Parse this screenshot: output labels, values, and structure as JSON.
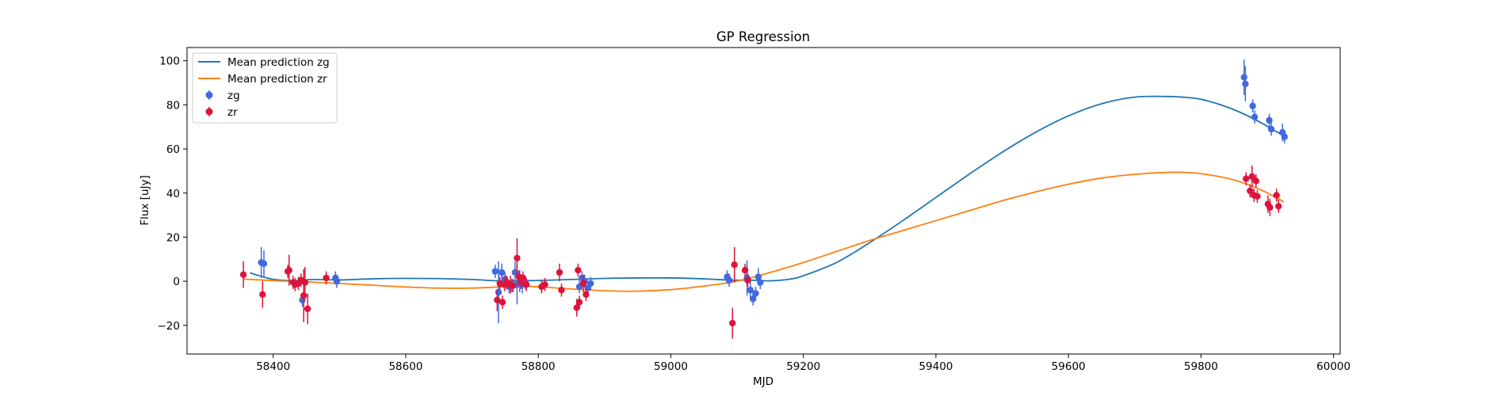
{
  "chart_data": {
    "type": "scatter",
    "title": "GP Regression",
    "xlabel": "MJD",
    "ylabel": "Flux [uJy]",
    "xlim": [
      58270,
      60010
    ],
    "ylim": [
      -33,
      106
    ],
    "xticks": [
      58400,
      58600,
      58800,
      59000,
      59200,
      59400,
      59600,
      59800,
      60000
    ],
    "yticks": [
      -20,
      0,
      20,
      40,
      60,
      80,
      100
    ],
    "grid": false,
    "legend_position": "top-left",
    "colors": {
      "mean_zg": "#1f77b4",
      "mean_zr": "#ff7f0e",
      "zg": "#4169e1",
      "zr": "#dc143c"
    },
    "lines": [
      {
        "name": "Mean prediction zg",
        "x": [
          58365,
          58380,
          58400,
          58430,
          58460,
          58500,
          58550,
          58600,
          58650,
          58700,
          58740,
          58780,
          58850,
          58900,
          58950,
          59000,
          59050,
          59090,
          59120,
          59150,
          59180,
          59200,
          59250,
          59300,
          59350,
          59400,
          59450,
          59500,
          59550,
          59600,
          59650,
          59700,
          59750,
          59780,
          59800,
          59830,
          59860,
          59890,
          59910,
          59925
        ],
        "y": [
          3.8,
          2.4,
          0.9,
          0.3,
          0.8,
          0.6,
          1.1,
          1.3,
          1.2,
          0.8,
          0.2,
          0.2,
          0.8,
          1.3,
          1.5,
          1.5,
          1.1,
          0.5,
          0.5,
          0.2,
          1.0,
          2.5,
          8.5,
          17.5,
          27.5,
          38.0,
          48.5,
          58.5,
          67.5,
          75.0,
          80.5,
          83.5,
          83.8,
          83.3,
          82.5,
          80.0,
          76.5,
          72.0,
          68.5,
          66.0
        ]
      },
      {
        "name": "Mean prediction zr",
        "x": [
          58355,
          58400,
          58450,
          58500,
          58550,
          58600,
          58650,
          58700,
          58740,
          58780,
          58850,
          58900,
          58950,
          59000,
          59050,
          59090,
          59120,
          59150,
          59200,
          59250,
          59300,
          59350,
          59400,
          59450,
          59500,
          59550,
          59600,
          59650,
          59700,
          59750,
          59780,
          59800,
          59830,
          59860,
          59890,
          59910,
          59925
        ],
        "y": [
          1.0,
          0.3,
          -0.3,
          -1.0,
          -1.8,
          -2.6,
          -3.1,
          -3.1,
          -2.6,
          -2.2,
          -3.5,
          -4.3,
          -4.5,
          -3.8,
          -2.2,
          -0.5,
          1.5,
          4.0,
          8.5,
          13.5,
          18.5,
          23.0,
          27.5,
          32.0,
          36.5,
          40.5,
          44.0,
          46.8,
          48.5,
          49.4,
          49.3,
          48.8,
          47.3,
          45.0,
          41.5,
          38.5,
          36.0
        ]
      }
    ],
    "series": [
      {
        "name": "zg",
        "x": [
          58382,
          58386,
          58444,
          58494,
          58496,
          58735,
          58740,
          58745,
          58750,
          58756,
          58760,
          58765,
          58768,
          58772,
          58776,
          58780,
          58862,
          58866,
          58870,
          58875,
          58879,
          59085,
          59088,
          59115,
          59120,
          59124,
          59128,
          59132,
          59135,
          59865,
          59867,
          59878,
          59881,
          59903,
          59906,
          59923,
          59926
        ],
        "y": [
          8.5,
          8.0,
          -8.5,
          1.5,
          0.0,
          4.5,
          -5.0,
          4.0,
          1.0,
          -2.5,
          -2.0,
          4.0,
          -1.5,
          0.0,
          -1.5,
          -0.5,
          -2.5,
          1.5,
          0.0,
          -3.0,
          -1.0,
          2.0,
          0.5,
          1.5,
          -4.0,
          -8.0,
          -5.5,
          2.0,
          -0.5,
          92.5,
          89.5,
          79.5,
          74.5,
          73.0,
          69.0,
          67.5,
          65.5
        ],
        "yerr": [
          7,
          6,
          3,
          3,
          3,
          3,
          14,
          4,
          3,
          3,
          3,
          5,
          9,
          5,
          4,
          3,
          3,
          3,
          3,
          3,
          3,
          3,
          3,
          8,
          4,
          3,
          3,
          4,
          3,
          8,
          8,
          3,
          3,
          3,
          3,
          4,
          3
        ]
      },
      {
        "name": "zr",
        "x": [
          58355,
          58384,
          58422,
          58424,
          58430,
          58433,
          58438,
          58442,
          58446,
          58448,
          58452,
          58480,
          58738,
          58742,
          58746,
          58749,
          58752,
          58758,
          58762,
          58768,
          58771,
          58774,
          58777,
          58782,
          58805,
          58810,
          58832,
          58835,
          58858,
          58860,
          58862,
          58868,
          58872,
          59093,
          59096,
          59112,
          59116,
          59868,
          59874,
          59877,
          59880,
          59883,
          59885,
          59901,
          59904,
          59914,
          59917
        ],
        "y": [
          3.0,
          -6.0,
          4.5,
          5.0,
          -0.5,
          -1.5,
          -1.0,
          0.5,
          -6.5,
          -0.5,
          -12.5,
          1.5,
          -8.5,
          -1.0,
          -9.5,
          -1.5,
          -0.5,
          -1.5,
          -2.0,
          10.5,
          2.0,
          -0.5,
          1.5,
          -1.5,
          -2.5,
          -1.5,
          4.0,
          -4.0,
          -12.0,
          5.0,
          -9.5,
          -1.0,
          -6.0,
          -19.0,
          7.5,
          5.0,
          0.5,
          46.5,
          41.0,
          47.5,
          39.0,
          45.5,
          38.5,
          35.0,
          33.5,
          39.0,
          34.0
        ],
        "yerr": [
          6,
          6,
          3,
          7,
          3,
          3,
          3,
          3,
          12,
          7,
          7,
          3,
          5,
          3,
          3,
          3,
          3,
          4,
          3,
          9,
          3,
          3,
          3,
          3,
          3,
          3,
          4,
          3,
          4,
          3,
          3,
          4,
          3,
          7,
          8,
          3,
          3,
          3,
          3,
          5,
          3,
          3,
          3,
          4,
          4,
          3,
          3
        ]
      }
    ]
  }
}
